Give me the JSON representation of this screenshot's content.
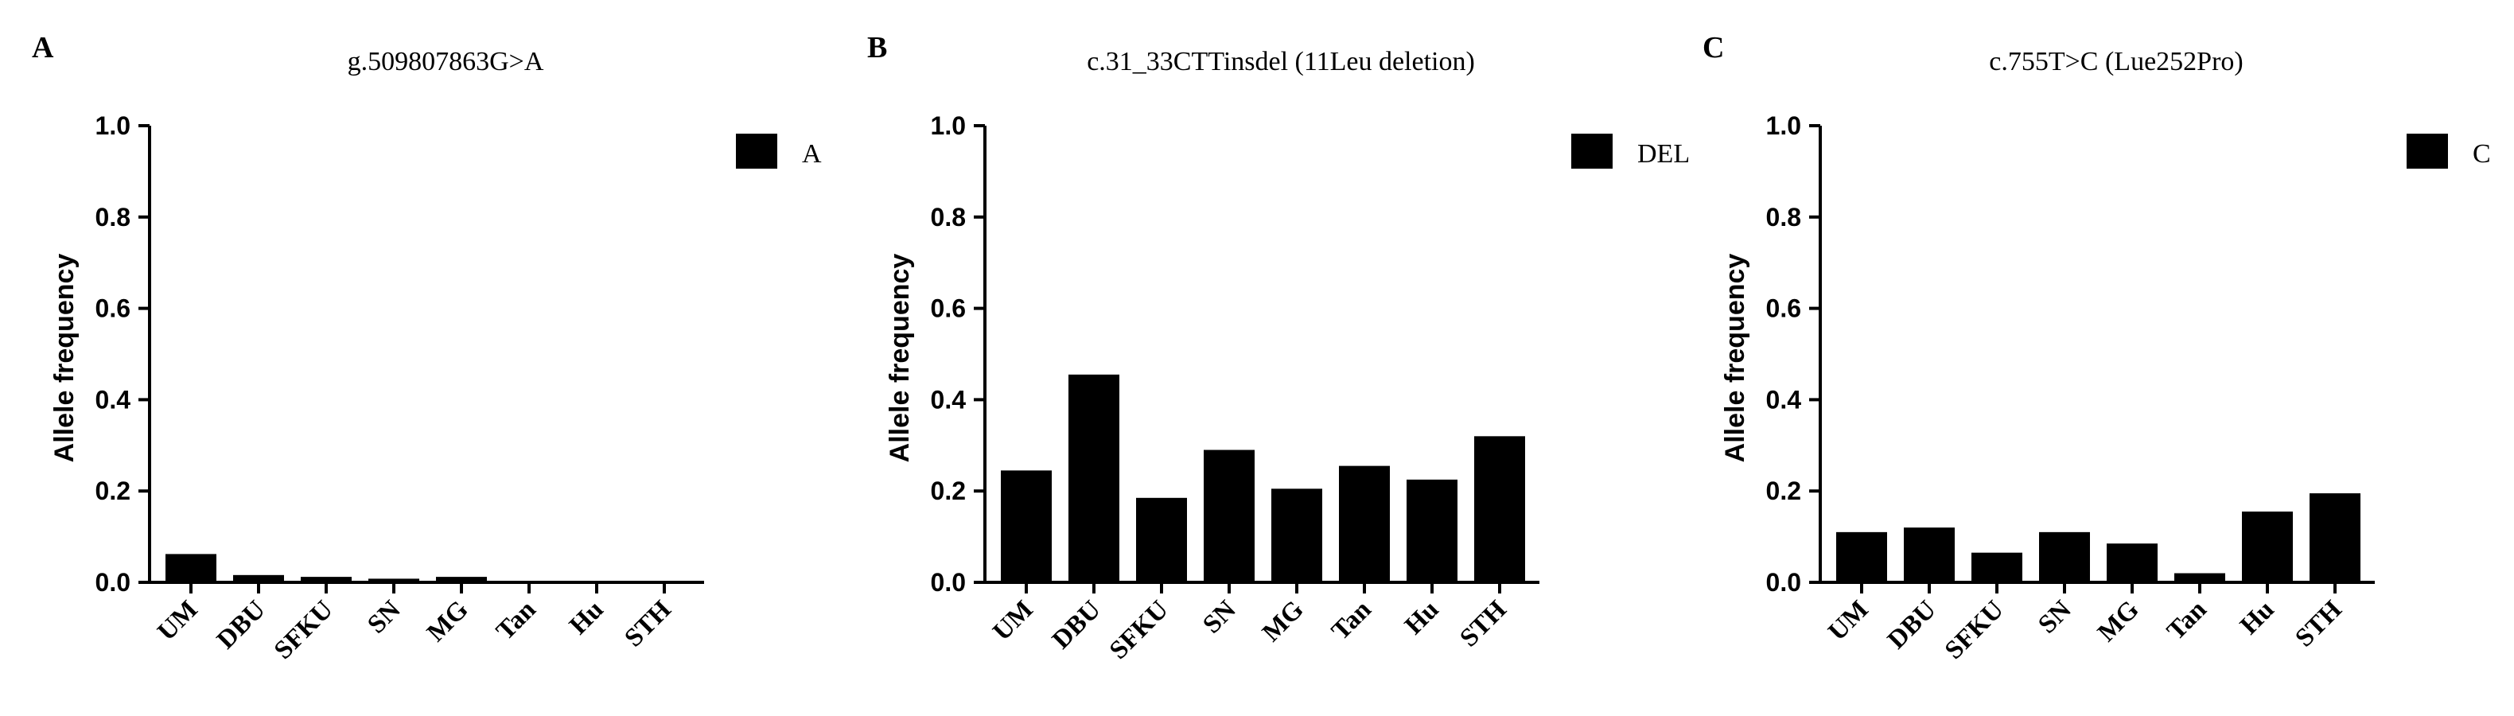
{
  "chart_data": [
    {
      "panel_label": "A",
      "type": "bar",
      "title": "g.509807863G>A",
      "ylabel": "Allele frequency",
      "xlabel": "",
      "categories": [
        "UM",
        "DBU",
        "SFKU",
        "SN",
        "MG",
        "Tan",
        "Hu",
        "STH"
      ],
      "series": [
        {
          "name": "A",
          "values": [
            0.062,
            0.016,
            0.012,
            0.008,
            0.012,
            0.0,
            0.0,
            0.0
          ]
        }
      ],
      "ylim": [
        0,
        1.0
      ],
      "yticks": [
        "0.0",
        "0.2",
        "0.4",
        "0.6",
        "0.8",
        "1.0"
      ],
      "grid": false,
      "legend_position": "top-right",
      "bar_color": "#000000"
    },
    {
      "panel_label": "B",
      "type": "bar",
      "title": "c.31_33CTTinsdel (11Leu deletion)",
      "ylabel": "Allele frequency",
      "xlabel": "",
      "categories": [
        "UM",
        "DBU",
        "SFKU",
        "SN",
        "MG",
        "Tan",
        "Hu",
        "STH"
      ],
      "series": [
        {
          "name": "DEL",
          "values": [
            0.245,
            0.455,
            0.185,
            0.29,
            0.205,
            0.255,
            0.225,
            0.32
          ]
        }
      ],
      "ylim": [
        0,
        1.0
      ],
      "yticks": [
        "0.0",
        "0.2",
        "0.4",
        "0.6",
        "0.8",
        "1.0"
      ],
      "grid": false,
      "legend_position": "top-right",
      "bar_color": "#000000"
    },
    {
      "panel_label": "C",
      "type": "bar",
      "title": "c.755T>C (Lue252Pro)",
      "ylabel": "Allele frequency",
      "xlabel": "",
      "categories": [
        "UM",
        "DBU",
        "SFKU",
        "SN",
        "MG",
        "Tan",
        "Hu",
        "STH"
      ],
      "series": [
        {
          "name": "C",
          "values": [
            0.11,
            0.12,
            0.065,
            0.11,
            0.085,
            0.02,
            0.155,
            0.195
          ]
        }
      ],
      "ylim": [
        0,
        1.0
      ],
      "yticks": [
        "0.0",
        "0.2",
        "0.4",
        "0.6",
        "0.8",
        "1.0"
      ],
      "grid": false,
      "legend_position": "top-right",
      "bar_color": "#000000"
    }
  ]
}
